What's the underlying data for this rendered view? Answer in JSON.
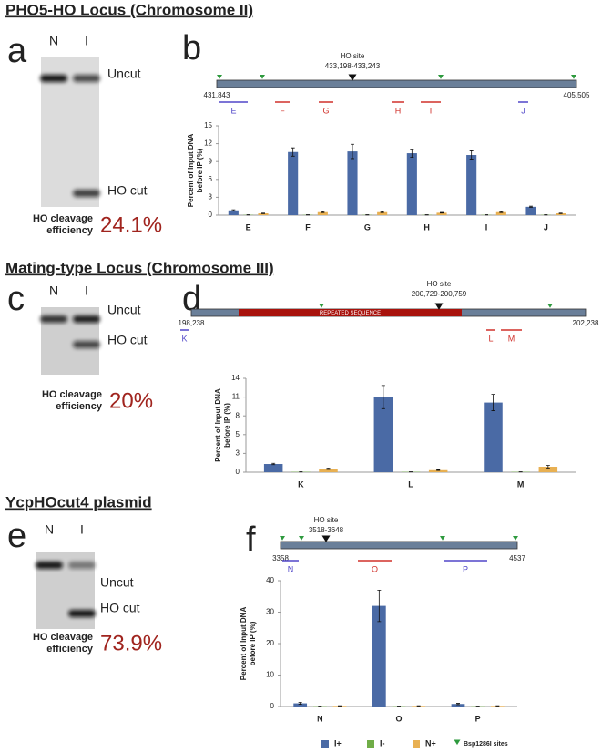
{
  "sections": [
    {
      "title": "PHO5-HO Locus (Chromosome II)",
      "gel_letter": "a",
      "chart_letter": "b",
      "lanes": [
        "N",
        "I"
      ],
      "bands": [
        "Uncut",
        "HO cut"
      ],
      "efficiency_label": [
        "HO cleavage",
        "efficiency"
      ],
      "efficiency": "24.1%"
    },
    {
      "title": "Mating-type Locus (Chromosome III)",
      "gel_letter": "c",
      "chart_letter": "d",
      "lanes": [
        "N",
        "I"
      ],
      "bands": [
        "Uncut",
        "HO cut"
      ],
      "efficiency_label": [
        "HO cleavage",
        "efficiency"
      ],
      "efficiency": "20%"
    },
    {
      "title": "YcpHOcut4 plasmid",
      "gel_letter": "e",
      "chart_letter": "f",
      "lanes": [
        "N",
        "I"
      ],
      "bands": [
        "Uncut",
        "HO cut"
      ],
      "efficiency_label": [
        "HO cleavage",
        "efficiency"
      ],
      "efficiency": "73.9%"
    }
  ],
  "chart_data": [
    {
      "type": "bar",
      "map": {
        "start": "431,843",
        "end": "405,505",
        "site_label": "HO site",
        "site_range": "433,198-433,243",
        "site_color": "#6a7f99",
        "regions": [
          {
            "label": "E",
            "color": "#5046c8"
          },
          {
            "label": "F",
            "color": "#d0302a"
          },
          {
            "label": "G",
            "color": "#d0302a"
          },
          {
            "label": "H",
            "color": "#d0302a"
          },
          {
            "label": "I",
            "color": "#d0302a"
          },
          {
            "label": "J",
            "color": "#5046c8"
          }
        ]
      },
      "ylabel": [
        "Percent of Input DNA",
        "before IP (%)"
      ],
      "categories": [
        "E",
        "F",
        "G",
        "H",
        "I",
        "J"
      ],
      "ylim": [
        0,
        15
      ],
      "yticks": [
        0,
        3,
        6,
        9,
        12,
        15
      ],
      "series": [
        {
          "color": "#4a6aa5",
          "values": [
            0.8,
            10.6,
            10.7,
            10.4,
            10.1,
            1.4
          ],
          "errors": [
            0.1,
            0.7,
            1.2,
            0.7,
            0.7,
            0.1
          ]
        },
        {
          "color": "#70ad47",
          "values": [
            0.05,
            0.05,
            0.05,
            0.05,
            0.05,
            0.05
          ],
          "errors": [
            0.02,
            0.02,
            0.02,
            0.02,
            0.02,
            0.02
          ]
        },
        {
          "color": "#e8b052",
          "values": [
            0.3,
            0.5,
            0.5,
            0.4,
            0.5,
            0.3
          ],
          "errors": [
            0.05,
            0.08,
            0.08,
            0.06,
            0.08,
            0.05
          ]
        }
      ]
    },
    {
      "type": "bar",
      "map": {
        "start": "198,238",
        "end": "202,238",
        "site_label": "HO site",
        "site_range": "200,729-200,759",
        "site_color": "#6a7f99",
        "repeat_label": "REPEATED SEQUENCE",
        "repeat_color": "#a8120c",
        "regions": [
          {
            "label": "K",
            "color": "#5046c8"
          },
          {
            "label": "L",
            "color": "#d0302a"
          },
          {
            "label": "M",
            "color": "#d0302a"
          }
        ]
      },
      "ylabel": [
        "Percent of Input DNA",
        "before IP (%)"
      ],
      "categories": [
        "K",
        "L",
        "M"
      ],
      "ylim": [
        0,
        13.75
      ],
      "yticks": [
        0,
        {
          "value": 2.75,
          "label": "3"
        },
        {
          "value": 5.5,
          "label": "5"
        },
        {
          "value": 8.25,
          "label": "8"
        },
        11,
        {
          "value": 13.75,
          "label": "14"
        }
      ],
      "series": [
        {
          "color": "#4a6aa5",
          "values": [
            1.2,
            11,
            10.2
          ],
          "errors": [
            0.1,
            1.7,
            1.2
          ]
        },
        {
          "color": "#70ad47",
          "values": [
            0.05,
            0.05,
            0.05
          ],
          "errors": [
            0.02,
            0.02,
            0.02
          ]
        },
        {
          "color": "#e8b052",
          "values": [
            0.5,
            0.3,
            0.8
          ],
          "errors": [
            0.1,
            0.05,
            0.2
          ]
        }
      ]
    },
    {
      "type": "bar",
      "map": {
        "start": "3358",
        "end": "4537",
        "site_label": "HO site",
        "site_range": "3518-3648",
        "site_color": "#6a7f99",
        "regions": [
          {
            "label": "N",
            "color": "#5046c8"
          },
          {
            "label": "O",
            "color": "#d0302a"
          },
          {
            "label": "P",
            "color": "#5046c8"
          }
        ]
      },
      "ylabel": [
        "Percent of Input DNA",
        "before IP (%)"
      ],
      "categories": [
        "N",
        "O",
        "P"
      ],
      "ylim": [
        0,
        40
      ],
      "yticks": [
        0,
        10,
        20,
        30,
        40
      ],
      "series": [
        {
          "name": "I+",
          "color": "#4a6aa5",
          "values": [
            1,
            32,
            0.8
          ],
          "errors": [
            0.3,
            5,
            0.2
          ]
        },
        {
          "name": "I-",
          "color": "#70ad47",
          "values": [
            0.1,
            0.1,
            0.1
          ],
          "errors": [
            0.05,
            0.05,
            0.05
          ]
        },
        {
          "name": "N+",
          "color": "#e8b052",
          "values": [
            0.2,
            0.2,
            0.2
          ],
          "errors": [
            0.05,
            0.05,
            0.05
          ]
        }
      ]
    }
  ],
  "legend_sites": "Bsp1286I sites",
  "sites_color": "#2e9a3e"
}
